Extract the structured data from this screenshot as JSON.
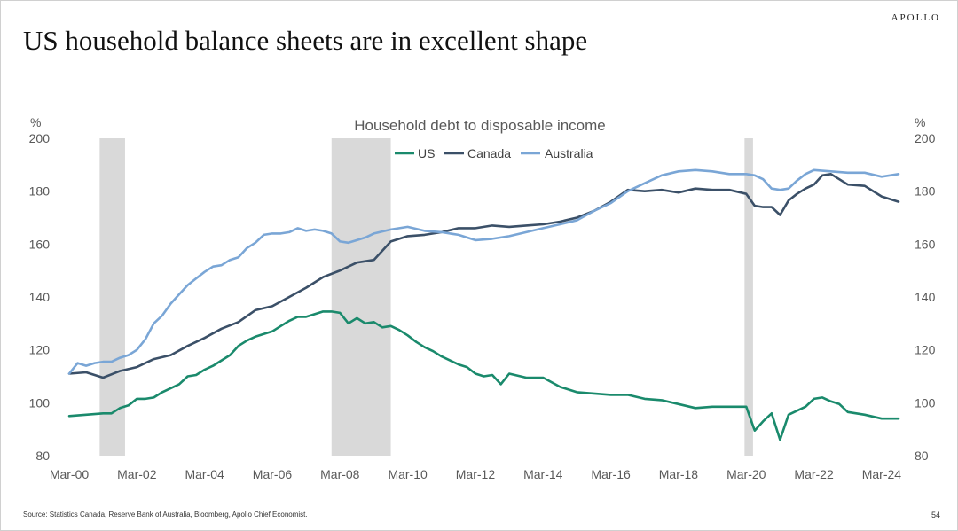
{
  "slide": {
    "brand": "APOLLO",
    "title": "US household balance sheets are in excellent shape",
    "source": "Source: Statistics Canada, Reserve Bank of Australia, Bloomberg, Apollo Chief Economist.",
    "page_number": "54"
  },
  "chart_data": {
    "type": "line",
    "title": "Household debt to disposable income",
    "ylabel_left": "%",
    "ylabel_right": "%",
    "ylim": [
      80,
      200
    ],
    "yticks": [
      80,
      100,
      120,
      140,
      160,
      180,
      200
    ],
    "xlim": [
      2000,
      2024.5
    ],
    "xticks": [
      {
        "x": 2000,
        "label": "Mar-00"
      },
      {
        "x": 2002,
        "label": "Mar-02"
      },
      {
        "x": 2004,
        "label": "Mar-04"
      },
      {
        "x": 2006,
        "label": "Mar-06"
      },
      {
        "x": 2008,
        "label": "Mar-08"
      },
      {
        "x": 2010,
        "label": "Mar-10"
      },
      {
        "x": 2012,
        "label": "Mar-12"
      },
      {
        "x": 2014,
        "label": "Mar-14"
      },
      {
        "x": 2016,
        "label": "Mar-16"
      },
      {
        "x": 2018,
        "label": "Mar-18"
      },
      {
        "x": 2020,
        "label": "Mar-20"
      },
      {
        "x": 2022,
        "label": "Mar-22"
      },
      {
        "x": 2024,
        "label": "Mar-24"
      }
    ],
    "recession_shading": [
      {
        "start": 2000.9,
        "end": 2001.65
      },
      {
        "start": 2007.75,
        "end": 2009.5
      },
      {
        "start": 2019.95,
        "end": 2020.2
      }
    ],
    "legend_position": "top-center",
    "grid": false,
    "series": [
      {
        "name": "US",
        "color": "#1a8a6c",
        "x": [
          2000,
          2000.5,
          2001,
          2001.25,
          2001.5,
          2001.75,
          2002,
          2002.25,
          2002.5,
          2002.75,
          2003,
          2003.25,
          2003.5,
          2003.75,
          2004,
          2004.25,
          2004.5,
          2004.75,
          2005,
          2005.25,
          2005.5,
          2005.75,
          2006,
          2006.25,
          2006.5,
          2006.75,
          2007,
          2007.25,
          2007.5,
          2007.75,
          2008,
          2008.25,
          2008.5,
          2008.75,
          2009,
          2009.25,
          2009.5,
          2009.75,
          2010,
          2010.25,
          2010.5,
          2010.75,
          2011,
          2011.25,
          2011.5,
          2011.75,
          2012,
          2012.25,
          2012.5,
          2012.75,
          2013,
          2013.5,
          2014,
          2014.5,
          2015,
          2015.5,
          2016,
          2016.5,
          2017,
          2017.5,
          2018,
          2018.5,
          2019,
          2019.5,
          2020,
          2020.25,
          2020.5,
          2020.75,
          2021,
          2021.25,
          2021.5,
          2021.75,
          2022,
          2022.25,
          2022.5,
          2022.75,
          2023,
          2023.5,
          2024,
          2024.5
        ],
        "values": [
          95,
          95.5,
          96,
          96,
          98,
          99,
          101.5,
          101.5,
          102,
          104,
          105.5,
          107,
          110,
          110.5,
          112.5,
          114,
          116,
          118,
          121.5,
          123.5,
          125,
          126,
          127,
          129,
          131,
          132.5,
          132.5,
          133.5,
          134.5,
          134.5,
          134,
          130,
          132,
          130,
          130.5,
          128.5,
          129,
          127.5,
          125.5,
          123,
          121,
          119.5,
          117.5,
          116,
          114.5,
          113.5,
          111,
          110,
          110.5,
          107,
          111,
          109.5,
          109.5,
          106,
          104,
          103.5,
          103,
          103,
          101.5,
          101,
          99.5,
          98,
          98.5,
          98.5,
          98.5,
          89.5,
          93,
          96,
          86,
          95.5,
          97,
          98.5,
          101.5,
          102,
          100.5,
          99.5,
          96.5,
          95.5,
          94,
          94
        ]
      },
      {
        "name": "Canada",
        "color": "#3b5068",
        "x": [
          2000,
          2000.5,
          2001,
          2001.5,
          2002,
          2002.5,
          2003,
          2003.5,
          2004,
          2004.5,
          2005,
          2005.5,
          2006,
          2006.5,
          2007,
          2007.5,
          2008,
          2008.5,
          2009,
          2009.5,
          2010,
          2010.5,
          2011,
          2011.5,
          2012,
          2012.5,
          2013,
          2013.5,
          2014,
          2014.5,
          2015,
          2015.5,
          2016,
          2016.5,
          2017,
          2017.5,
          2018,
          2018.5,
          2019,
          2019.5,
          2020,
          2020.25,
          2020.5,
          2020.75,
          2021,
          2021.25,
          2021.5,
          2021.75,
          2022,
          2022.25,
          2022.5,
          2022.75,
          2023,
          2023.5,
          2024,
          2024.5
        ],
        "values": [
          111,
          111.5,
          109.5,
          112,
          113.5,
          116.5,
          118,
          121.5,
          124.5,
          128,
          130.5,
          135,
          136.5,
          140,
          143.5,
          147.5,
          150,
          153,
          154,
          161,
          163,
          163.5,
          164.5,
          166,
          166,
          167,
          166.5,
          167,
          167.5,
          168.5,
          170,
          172.5,
          176,
          180.5,
          180,
          180.5,
          179.5,
          181,
          180.5,
          180.5,
          179,
          174.5,
          174,
          174,
          171,
          176.5,
          179,
          181,
          182.5,
          186,
          186.5,
          184.5,
          182.5,
          182,
          178,
          176
        ]
      },
      {
        "name": "Australia",
        "color": "#7aa6d6",
        "x": [
          2000,
          2000.25,
          2000.5,
          2000.75,
          2001,
          2001.25,
          2001.5,
          2001.75,
          2002,
          2002.25,
          2002.5,
          2002.75,
          2003,
          2003.25,
          2003.5,
          2003.75,
          2004,
          2004.25,
          2004.5,
          2004.75,
          2005,
          2005.25,
          2005.5,
          2005.75,
          2006,
          2006.25,
          2006.5,
          2006.75,
          2007,
          2007.25,
          2007.5,
          2007.75,
          2008,
          2008.25,
          2008.5,
          2008.75,
          2009,
          2009.5,
          2010,
          2010.5,
          2011,
          2011.5,
          2012,
          2012.5,
          2013,
          2013.5,
          2014,
          2014.5,
          2015,
          2015.5,
          2016,
          2016.5,
          2017,
          2017.5,
          2018,
          2018.5,
          2019,
          2019.5,
          2020,
          2020.25,
          2020.5,
          2020.75,
          2021,
          2021.25,
          2021.5,
          2021.75,
          2022,
          2022.5,
          2023,
          2023.5,
          2024,
          2024.5
        ],
        "values": [
          111,
          115,
          114,
          115,
          115.5,
          115.5,
          117,
          118,
          120,
          124,
          130,
          133,
          137.5,
          141,
          144.5,
          147,
          149.5,
          151.5,
          152,
          154,
          155,
          158.5,
          160.5,
          163.5,
          164,
          164,
          164.5,
          166,
          165,
          165.5,
          165,
          164,
          161,
          160.5,
          161.5,
          162.5,
          164,
          165.5,
          166.5,
          165,
          164.5,
          163.5,
          161.5,
          162,
          163,
          164.5,
          166,
          167.5,
          169,
          172.5,
          175.5,
          180,
          183,
          186,
          187.5,
          188,
          187.5,
          186.5,
          186.5,
          186,
          184.5,
          181,
          180.5,
          181,
          184,
          186.5,
          188,
          187.5,
          187,
          187,
          185.5,
          186.5
        ]
      }
    ]
  }
}
